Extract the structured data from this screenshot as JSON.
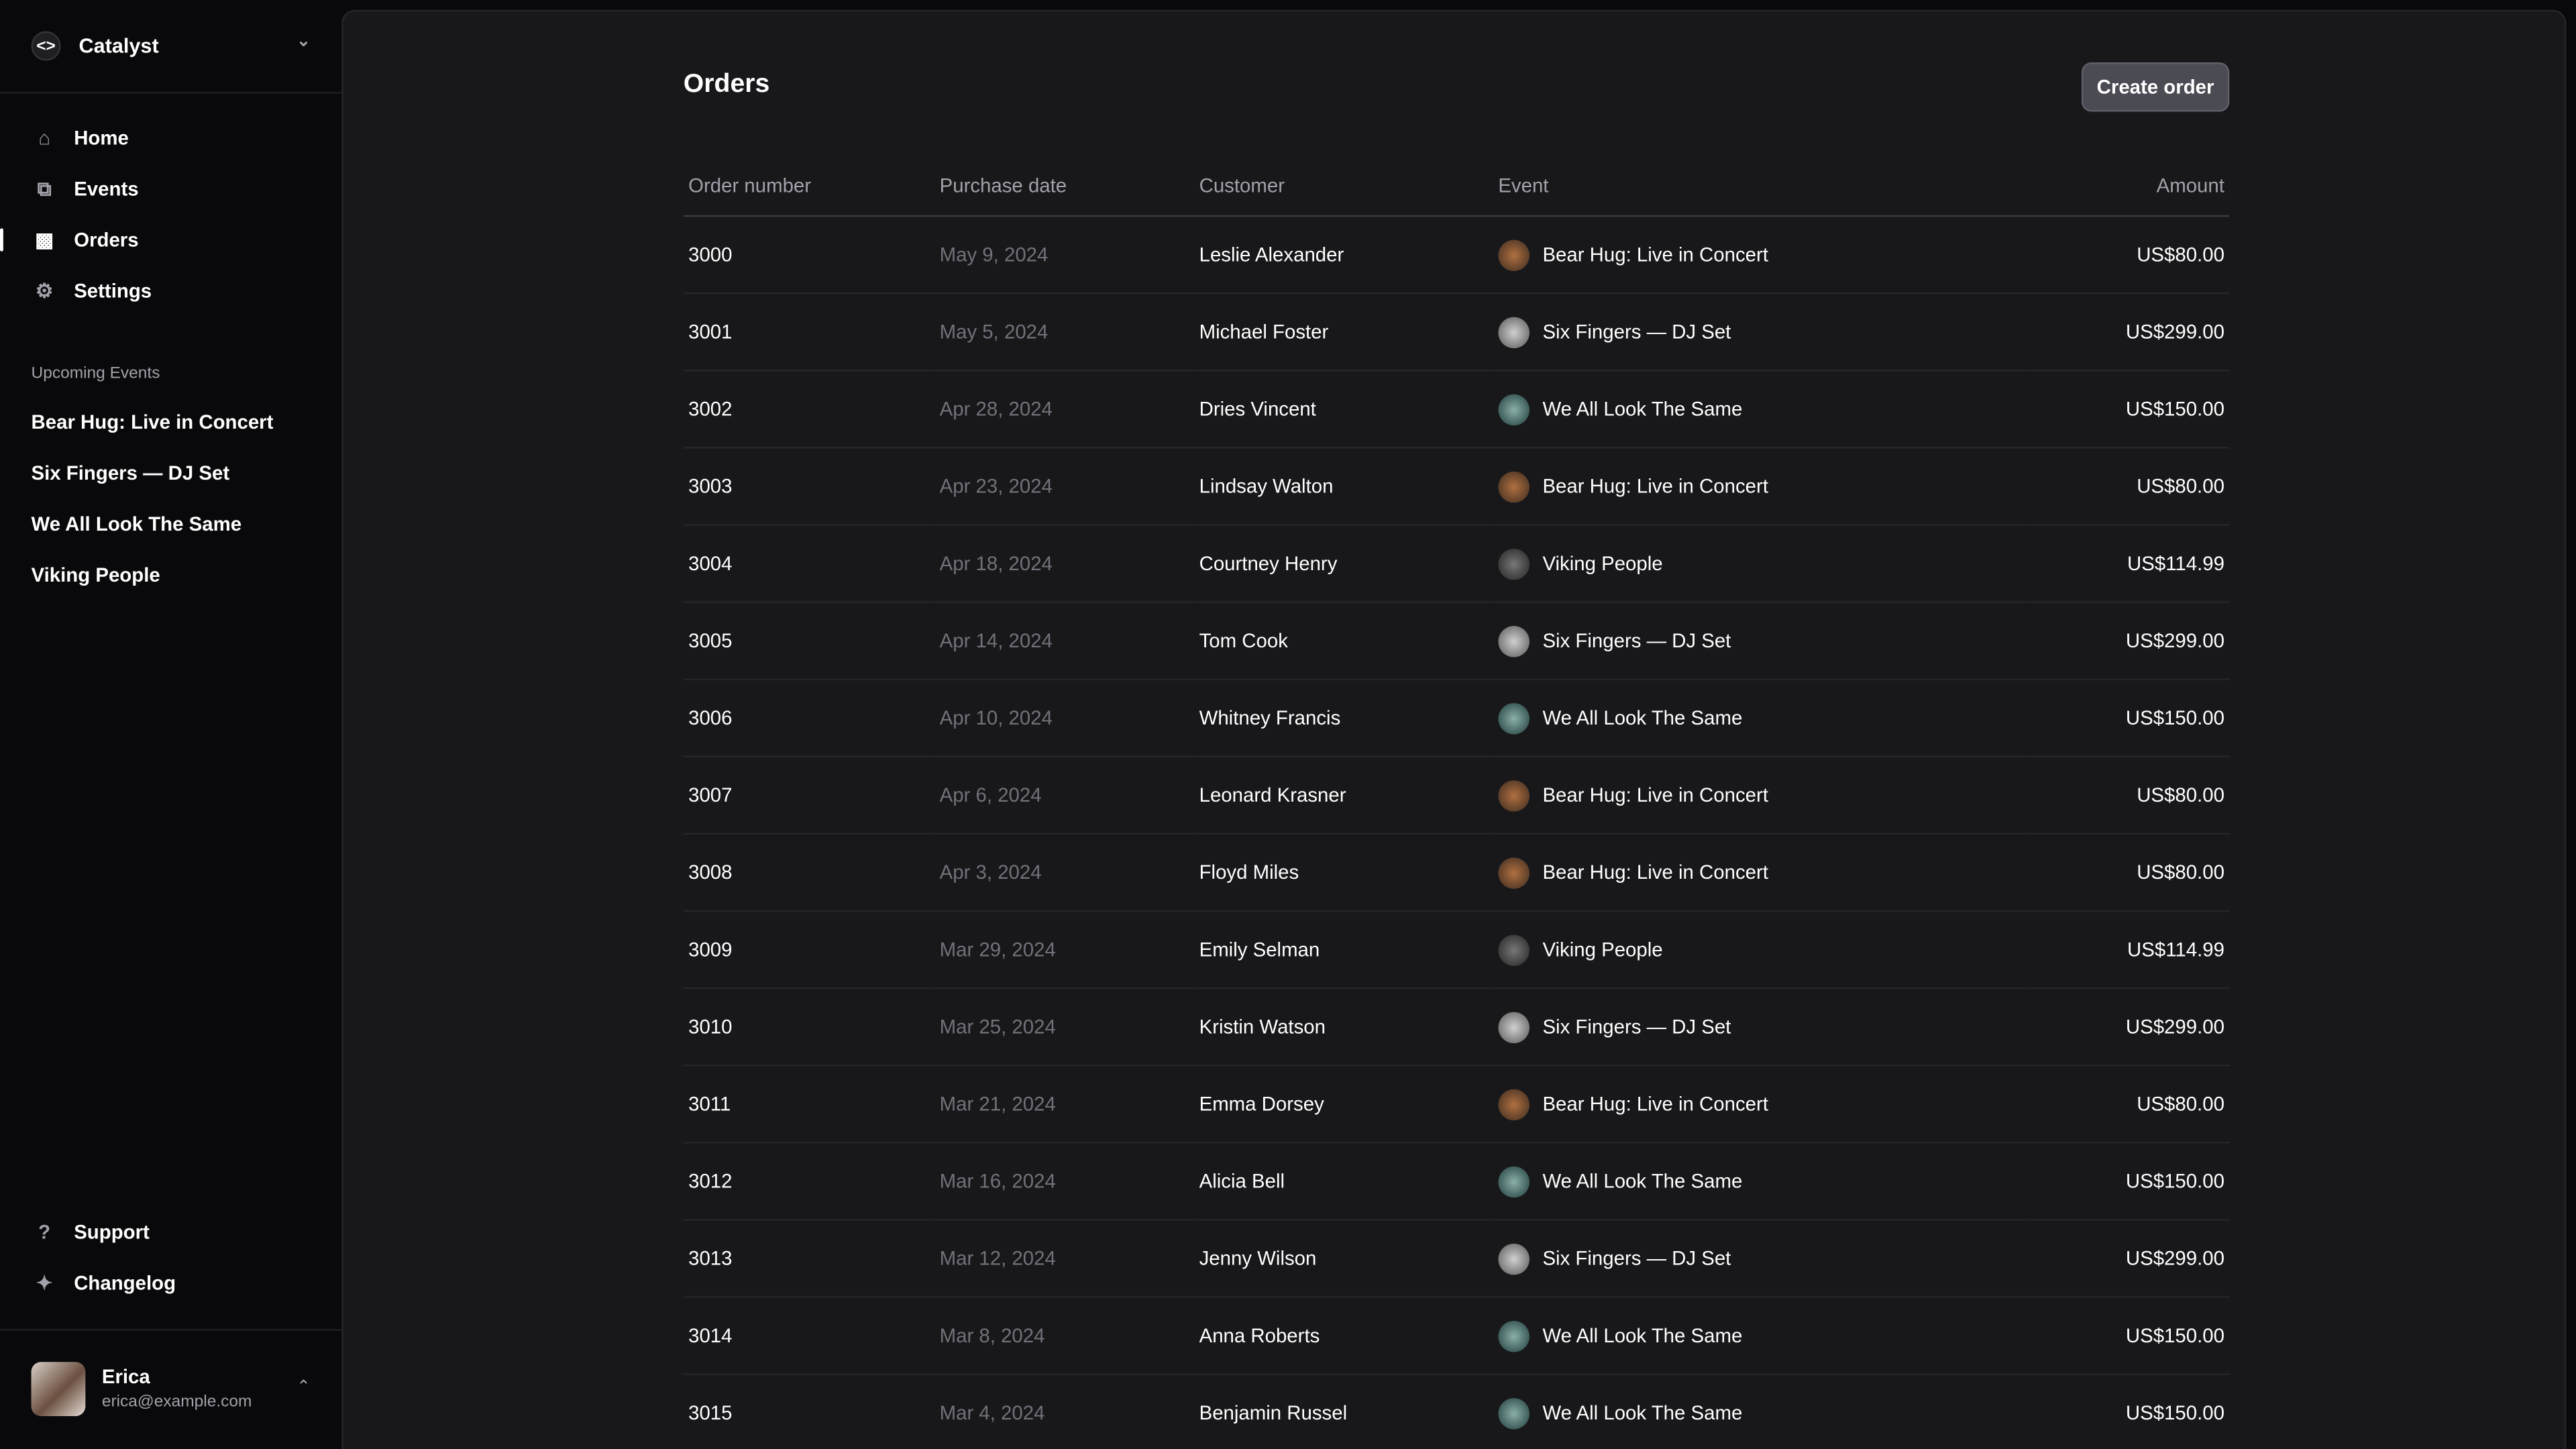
{
  "sidebar": {
    "brand": "Catalyst",
    "nav": [
      {
        "label": "Home",
        "icon": "home-icon"
      },
      {
        "label": "Events",
        "icon": "squares-icon"
      },
      {
        "label": "Orders",
        "icon": "ticket-icon",
        "active": true
      },
      {
        "label": "Settings",
        "icon": "gear-icon"
      }
    ],
    "upcoming_label": "Upcoming Events",
    "upcoming": [
      "Bear Hug: Live in Concert",
      "Six Fingers — DJ Set",
      "We All Look The Same",
      "Viking People"
    ],
    "footer": [
      {
        "label": "Support",
        "icon": "question-icon"
      },
      {
        "label": "Changelog",
        "icon": "sparkles-icon"
      }
    ],
    "user": {
      "name": "Erica",
      "email": "erica@example.com"
    }
  },
  "main": {
    "title": "Orders",
    "create_button": "Create order",
    "columns": [
      "Order number",
      "Purchase date",
      "Customer",
      "Event",
      "Amount"
    ],
    "rows": [
      [
        "3000",
        "May 9, 2024",
        "Leslie Alexander",
        "Bear Hug: Live in Concert",
        "US$80.00"
      ],
      [
        "3001",
        "May 5, 2024",
        "Michael Foster",
        "Six Fingers — DJ Set",
        "US$299.00"
      ],
      [
        "3002",
        "Apr 28, 2024",
        "Dries Vincent",
        "We All Look The Same",
        "US$150.00"
      ],
      [
        "3003",
        "Apr 23, 2024",
        "Lindsay Walton",
        "Bear Hug: Live in Concert",
        "US$80.00"
      ],
      [
        "3004",
        "Apr 18, 2024",
        "Courtney Henry",
        "Viking People",
        "US$114.99"
      ],
      [
        "3005",
        "Apr 14, 2024",
        "Tom Cook",
        "Six Fingers — DJ Set",
        "US$299.00"
      ],
      [
        "3006",
        "Apr 10, 2024",
        "Whitney Francis",
        "We All Look The Same",
        "US$150.00"
      ],
      [
        "3007",
        "Apr 6, 2024",
        "Leonard Krasner",
        "Bear Hug: Live in Concert",
        "US$80.00"
      ],
      [
        "3008",
        "Apr 3, 2024",
        "Floyd Miles",
        "Bear Hug: Live in Concert",
        "US$80.00"
      ],
      [
        "3009",
        "Mar 29, 2024",
        "Emily Selman",
        "Viking People",
        "US$114.99"
      ],
      [
        "3010",
        "Mar 25, 2024",
        "Kristin Watson",
        "Six Fingers — DJ Set",
        "US$299.00"
      ],
      [
        "3011",
        "Mar 21, 2024",
        "Emma Dorsey",
        "Bear Hug: Live in Concert",
        "US$80.00"
      ],
      [
        "3012",
        "Mar 16, 2024",
        "Alicia Bell",
        "We All Look The Same",
        "US$150.00"
      ],
      [
        "3013",
        "Mar 12, 2024",
        "Jenny Wilson",
        "Six Fingers — DJ Set",
        "US$299.00"
      ],
      [
        "3014",
        "Mar 8, 2024",
        "Anna Roberts",
        "We All Look The Same",
        "US$150.00"
      ],
      [
        "3015",
        "Mar 4, 2024",
        "Benjamin Russel",
        "We All Look The Same",
        "US$150.00"
      ]
    ]
  },
  "colors": {
    "sidebar_bg": "#09090b",
    "main_bg": "#18181b",
    "muted_text": "#a1a1aa",
    "date_text": "#71717a",
    "button_bg": "#4b4b53"
  }
}
